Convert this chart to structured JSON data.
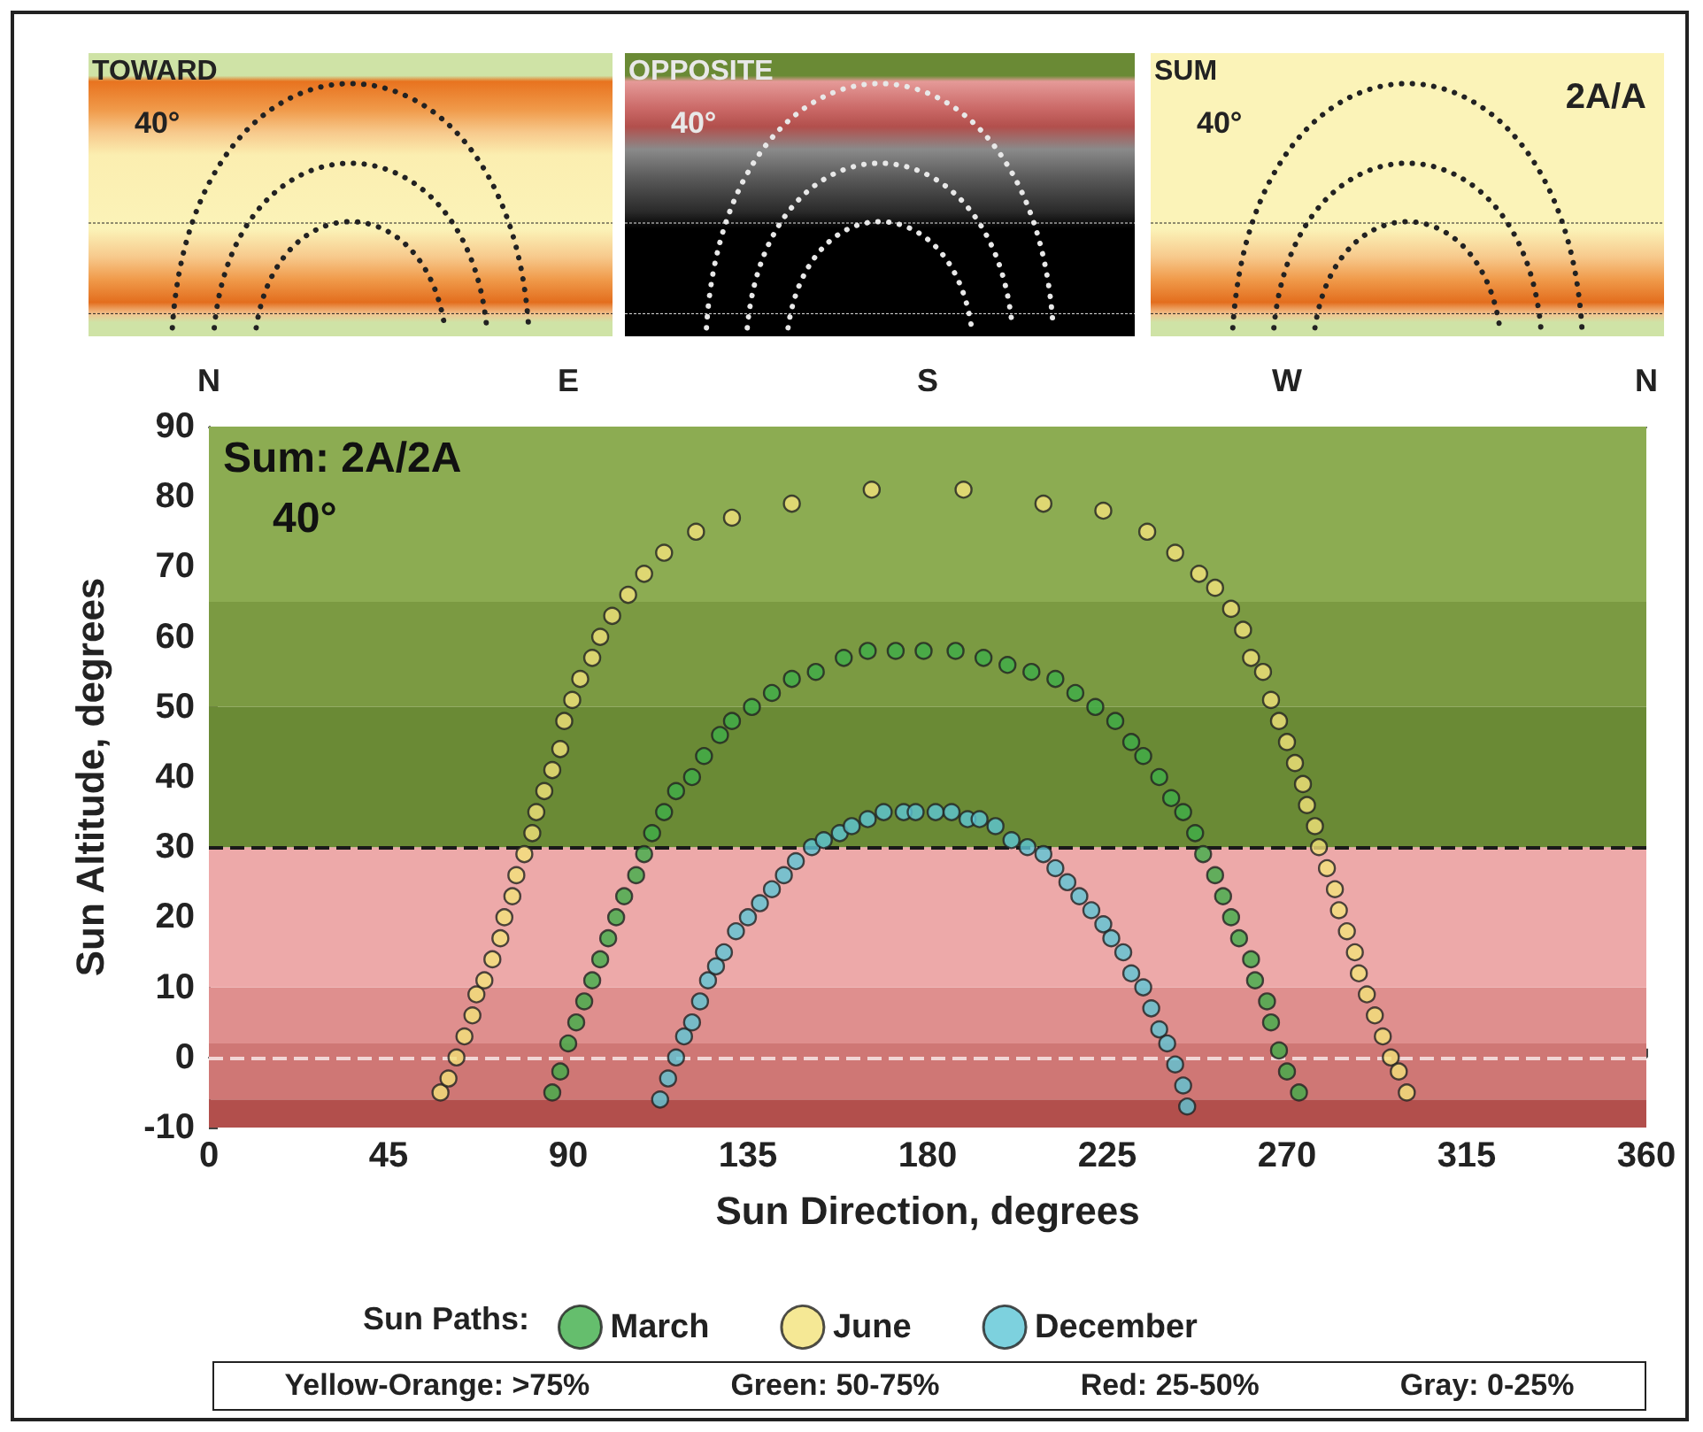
{
  "chart_data": [
    {
      "type": "other",
      "title": "TOWARD",
      "annotations": [
        "40°"
      ]
    },
    {
      "type": "other",
      "title": "OPPOSITE",
      "annotations": [
        "40°"
      ]
    },
    {
      "type": "other",
      "title": "SUM",
      "annotations": [
        "40°",
        "2A/A"
      ]
    },
    {
      "type": "scatter",
      "title": "Sum: 2A/2A",
      "xlabel": "Sun Direction, degrees",
      "ylabel": "Sun Altitude, degrees",
      "legend_title": "Sun Paths:",
      "legend": "bottom",
      "marker": "circle",
      "annotations": [
        "40°",
        "Yellow-Orange: >75%",
        "Green: 50-75%",
        "Red: 25-50%",
        "Gray: 0-25%",
        "N",
        "E",
        "S",
        "W",
        "N"
      ],
      "xlim": [
        0,
        360
      ],
      "xticks": [
        0,
        45,
        90,
        135,
        180,
        225,
        270,
        315,
        360
      ],
      "ylim": [
        -10,
        90
      ],
      "yticks": [
        -10,
        0,
        10,
        20,
        30,
        40,
        50,
        60,
        70,
        80,
        90
      ],
      "ref_lines": [
        {
          "axis": "y",
          "value": 30,
          "color": "#1a1a1a",
          "line_style": "dashed"
        },
        {
          "axis": "y",
          "value": 0,
          "color": "#f2d6d6",
          "line_style": "dashed"
        }
      ],
      "bands": [
        {
          "axis": "y",
          "from": -10,
          "to": -6,
          "color": "#b24f4c"
        },
        {
          "axis": "y",
          "from": -6,
          "to": 2,
          "color": "#cf7775"
        },
        {
          "axis": "y",
          "from": 2,
          "to": 10,
          "color": "#df8f8e"
        },
        {
          "axis": "y",
          "from": 10,
          "to": 30,
          "color": "#eda9a9"
        },
        {
          "axis": "y",
          "from": 30,
          "to": 50,
          "color": "#6a8a35"
        },
        {
          "axis": "y",
          "from": 50,
          "to": 65,
          "color": "#7b9a42"
        },
        {
          "axis": "y",
          "from": 65,
          "to": 90,
          "color": "#8cac52"
        }
      ],
      "series": [
        {
          "name": "March",
          "color": "#3fae49",
          "x": [
            86,
            88,
            90,
            92,
            94,
            96,
            98,
            100,
            102,
            104,
            107,
            109,
            111,
            114,
            117,
            121,
            124,
            128,
            131,
            136,
            141,
            146,
            152,
            159,
            165,
            172,
            179,
            187,
            194,
            200,
            206,
            212,
            217,
            222,
            227,
            231,
            234,
            238,
            241,
            244,
            247,
            249,
            252,
            254,
            256,
            258,
            261,
            262,
            265,
            266,
            268,
            270,
            273
          ],
          "values": [
            -5,
            -2,
            2,
            5,
            8,
            11,
            14,
            17,
            20,
            23,
            26,
            29,
            32,
            35,
            38,
            40,
            43,
            46,
            48,
            50,
            52,
            54,
            55,
            57,
            58,
            58,
            58,
            58,
            57,
            56,
            55,
            54,
            52,
            50,
            48,
            45,
            43,
            40,
            37,
            35,
            32,
            29,
            26,
            23,
            20,
            17,
            14,
            11,
            8,
            5,
            1,
            -2,
            -5
          ]
        },
        {
          "name": "June",
          "color": "#f3e27a",
          "x": [
            58,
            60,
            62,
            64,
            66,
            67,
            69,
            71,
            73,
            74,
            76,
            77,
            79,
            81,
            82,
            84,
            86,
            88,
            89,
            91,
            93,
            96,
            98,
            101,
            105,
            109,
            114,
            122,
            131,
            146,
            166,
            189,
            209,
            224,
            235,
            242,
            248,
            252,
            256,
            259,
            261,
            264,
            266,
            268,
            270,
            272,
            274,
            275,
            277,
            278,
            280,
            282,
            283,
            285,
            287,
            288,
            290,
            292,
            294,
            296,
            298,
            300
          ],
          "values": [
            -5,
            -3,
            0,
            3,
            6,
            9,
            11,
            14,
            17,
            20,
            23,
            26,
            29,
            32,
            35,
            38,
            41,
            44,
            48,
            51,
            54,
            57,
            60,
            63,
            66,
            69,
            72,
            75,
            77,
            79,
            81,
            81,
            79,
            78,
            75,
            72,
            69,
            67,
            64,
            61,
            57,
            55,
            51,
            48,
            45,
            42,
            39,
            36,
            33,
            30,
            27,
            24,
            21,
            18,
            15,
            12,
            9,
            6,
            3,
            0,
            -2,
            -5
          ]
        },
        {
          "name": "December",
          "color": "#5cc6d6",
          "x": [
            113,
            115,
            117,
            119,
            121,
            123,
            125,
            127,
            129,
            132,
            135,
            138,
            141,
            144,
            147,
            151,
            154,
            158,
            161,
            165,
            169,
            174,
            177,
            182,
            186,
            190,
            193,
            197,
            201,
            205,
            209,
            212,
            215,
            218,
            221,
            224,
            226,
            229,
            231,
            234,
            236,
            238,
            240,
            242,
            244,
            245
          ],
          "values": [
            -6,
            -3,
            0,
            3,
            5,
            8,
            11,
            13,
            15,
            18,
            20,
            22,
            24,
            26,
            28,
            30,
            31,
            32,
            33,
            34,
            35,
            35,
            35,
            35,
            35,
            34,
            34,
            33,
            31,
            30,
            29,
            27,
            25,
            23,
            21,
            19,
            17,
            15,
            12,
            10,
            7,
            4,
            2,
            -1,
            -4,
            -7
          ]
        }
      ]
    }
  ]
}
